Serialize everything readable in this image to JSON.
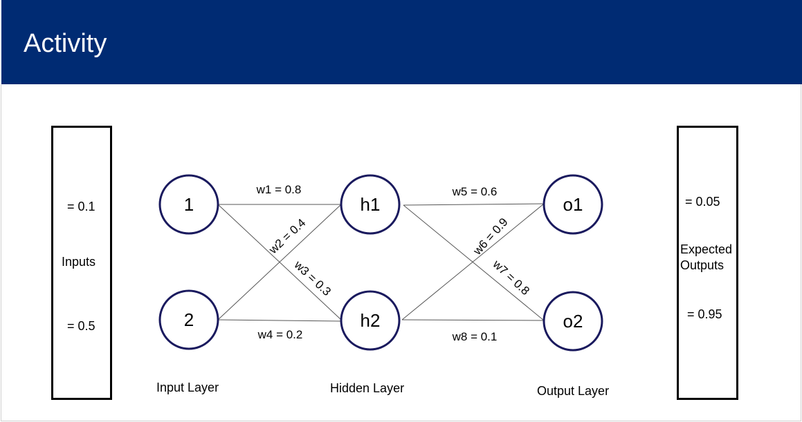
{
  "header": {
    "title": "Activity"
  },
  "inputs_panel": {
    "label": "Inputs",
    "value_top": "= 0.1",
    "value_bottom": "= 0.5"
  },
  "outputs_panel": {
    "label_line1": "Expected",
    "label_line2": "Outputs",
    "value_top": "= 0.05",
    "value_bottom": "= 0.95"
  },
  "nodes": {
    "input1": "1",
    "input2": "2",
    "hidden1": "h1",
    "hidden2": "h2",
    "output1": "o1",
    "output2": "o2"
  },
  "weights": {
    "w1": "w1 = 0.8",
    "w2": "w2 = 0.4",
    "w3": "w3 = 0.3",
    "w4": "w4 = 0.2",
    "w5": "w5 = 0.6",
    "w6": "w6 = 0.9",
    "w7": "w7 = 0.8",
    "w8": "w8 = 0.1"
  },
  "layers": {
    "input": "Input Layer",
    "hidden": "Hidden Layer",
    "output": "Output Layer"
  },
  "colors": {
    "header_bg": "#002b73",
    "node_border": "#1a1a5e"
  }
}
